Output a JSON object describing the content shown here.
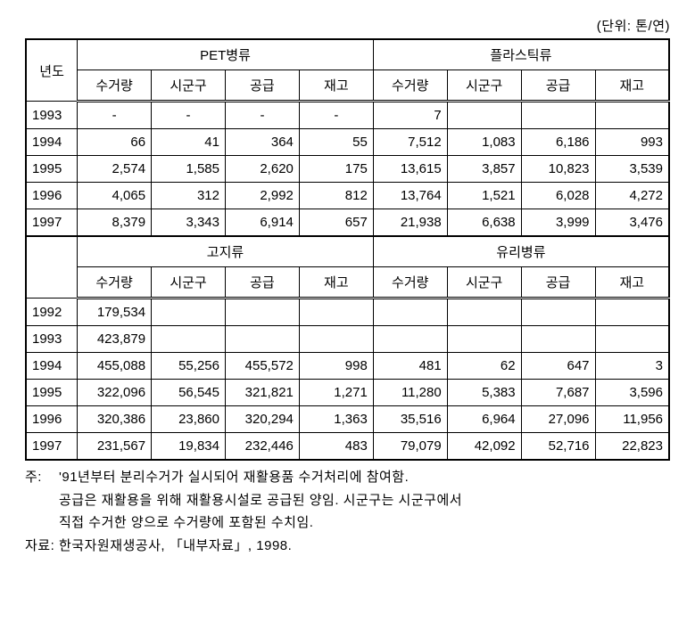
{
  "unit_label": "(단위: 톤/연)",
  "top_headers": {
    "year": "년도",
    "group1": "PET병류",
    "group2": "플라스틱류",
    "sub": [
      "수거량",
      "시군구",
      "공급",
      "재고"
    ]
  },
  "top_rows": [
    {
      "year": "1993",
      "g1": [
        "-",
        "-",
        "-",
        "-"
      ],
      "g2": [
        "7",
        "",
        "",
        ""
      ],
      "g1_align": "ctr"
    },
    {
      "year": "1994",
      "g1": [
        "66",
        "41",
        "364",
        "55"
      ],
      "g2": [
        "7,512",
        "1,083",
        "6,186",
        "993"
      ]
    },
    {
      "year": "1995",
      "g1": [
        "2,574",
        "1,585",
        "2,620",
        "175"
      ],
      "g2": [
        "13,615",
        "3,857",
        "10,823",
        "3,539"
      ]
    },
    {
      "year": "1996",
      "g1": [
        "4,065",
        "312",
        "2,992",
        "812"
      ],
      "g2": [
        "13,764",
        "1,521",
        "6,028",
        "4,272"
      ]
    },
    {
      "year": "1997",
      "g1": [
        "8,379",
        "3,343",
        "6,914",
        "657"
      ],
      "g2": [
        "21,938",
        "6,638",
        "3,999",
        "3,476"
      ]
    }
  ],
  "mid_headers": {
    "group1": "고지류",
    "group2": "유리병류",
    "sub": [
      "수거량",
      "시군구",
      "공급",
      "재고"
    ]
  },
  "bottom_rows": [
    {
      "year": "1992",
      "g1": [
        "179,534",
        "",
        "",
        ""
      ],
      "g2": [
        "",
        "",
        "",
        ""
      ]
    },
    {
      "year": "1993",
      "g1": [
        "423,879",
        "",
        "",
        ""
      ],
      "g2": [
        "",
        "",
        "",
        ""
      ]
    },
    {
      "year": "1994",
      "g1": [
        "455,088",
        "55,256",
        "455,572",
        "998"
      ],
      "g2": [
        "481",
        "62",
        "647",
        "3"
      ]
    },
    {
      "year": "1995",
      "g1": [
        "322,096",
        "56,545",
        "321,821",
        "1,271"
      ],
      "g2": [
        "11,280",
        "5,383",
        "7,687",
        "3,596"
      ]
    },
    {
      "year": "1996",
      "g1": [
        "320,386",
        "23,860",
        "320,294",
        "1,363"
      ],
      "g2": [
        "35,516",
        "6,964",
        "27,096",
        "11,956"
      ]
    },
    {
      "year": "1997",
      "g1": [
        "231,567",
        "19,834",
        "232,446",
        "483"
      ],
      "g2": [
        "79,079",
        "42,092",
        "52,716",
        "22,823"
      ]
    }
  ],
  "notes": {
    "note_label": "주:",
    "note_line1": "'91년부터 분리수거가 실시되어 재활용품 수거처리에 참여함.",
    "note_line2": "공급은 재활용을 위해 재활용시설로 공급된 양임. 시군구는 시군구에서",
    "note_line3": "직접 수거한 양으로 수거량에 포함된 수치임.",
    "source_label": "자료:",
    "source_text": "한국자원재생공사, 「내부자료」, 1998."
  }
}
